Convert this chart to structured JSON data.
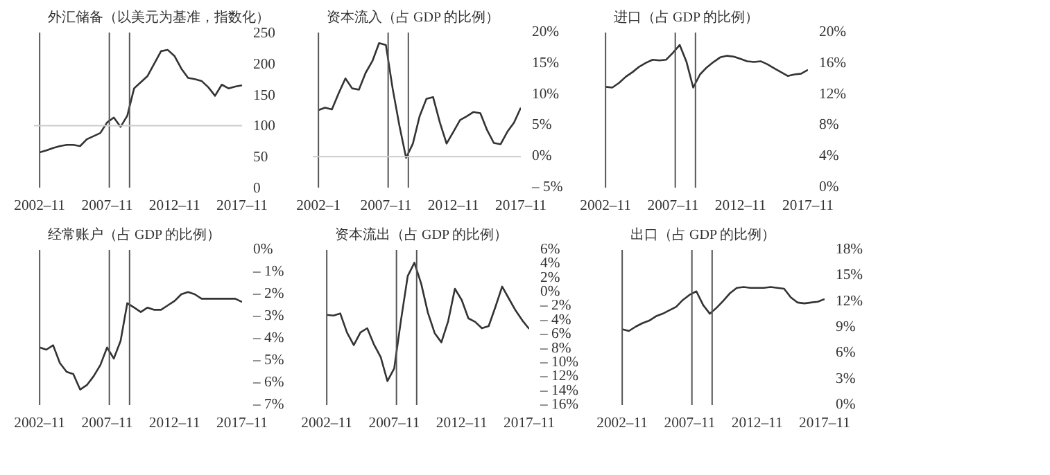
{
  "chart_data": [
    {
      "type": "line",
      "x": [
        "2002-11",
        "2003-05",
        "2003-11",
        "2004-05",
        "2004-11",
        "2005-05",
        "2005-11",
        "2006-05",
        "2006-11",
        "2007-05",
        "2007-11",
        "2008-05",
        "2008-11",
        "2009-05",
        "2009-11",
        "2010-05",
        "2010-11",
        "2011-05",
        "2011-11",
        "2012-05",
        "2012-11",
        "2013-05",
        "2013-11",
        "2014-05",
        "2014-11",
        "2015-05",
        "2015-11",
        "2016-05",
        "2016-11",
        "2017-05",
        "2017-11"
      ],
      "series": [
        {
          "name": "外汇储备（以美元为基准，指数化）",
          "color": "#333333",
          "values": [
            57,
            60,
            64,
            67,
            69,
            69,
            67,
            78,
            83,
            88,
            105,
            113,
            98,
            116,
            160,
            170,
            180,
            200,
            220,
            222,
            212,
            192,
            177,
            175,
            172,
            162,
            148,
            166,
            160,
            163,
            165
          ]
        }
      ],
      "xlim": [
        "2002-06",
        "2017-11"
      ],
      "xticks": [
        {
          "value": "2002-11",
          "label": "2002–11"
        },
        {
          "value": "2007-11",
          "label": "2007–11"
        },
        {
          "value": "2012-11",
          "label": "2012–11"
        },
        {
          "value": "2017-11",
          "label": "2017–11"
        }
      ],
      "ylim": [
        0,
        250
      ],
      "yticks": [
        0,
        50,
        100,
        150,
        200,
        250
      ],
      "ref_lines": [
        {
          "axis": "x",
          "value": "2002-11"
        },
        {
          "axis": "x",
          "value": "2008-01"
        },
        {
          "axis": "x",
          "value": "2009-07"
        },
        {
          "axis": "y",
          "value": 100,
          "color": "#cccccc"
        }
      ]
    },
    {
      "type": "line",
      "x": [
        "2002-11",
        "2003-05",
        "2003-11",
        "2004-05",
        "2004-11",
        "2005-05",
        "2005-11",
        "2006-05",
        "2006-11",
        "2007-05",
        "2007-11",
        "2008-05",
        "2008-11",
        "2009-05",
        "2009-11",
        "2010-05",
        "2010-11",
        "2011-05",
        "2011-11",
        "2012-05",
        "2012-11",
        "2013-05",
        "2013-11",
        "2014-05",
        "2014-11",
        "2015-05",
        "2015-11",
        "2016-05",
        "2016-11",
        "2017-05",
        "2017-11"
      ],
      "series": [
        {
          "name": "资本流入（占 GDP 的比例）",
          "color": "#333333",
          "values": [
            7.5,
            7.9,
            7.6,
            10.2,
            12.6,
            11,
            10.8,
            13.5,
            15.4,
            18.3,
            18,
            11,
            5.0,
            -0.2,
            2.1,
            6.5,
            9.3,
            9.6,
            5.5,
            2.1,
            4.0,
            5.9,
            6.5,
            7.2,
            7.0,
            4.3,
            2.2,
            2.0,
            4.0,
            5.5,
            7.9
          ]
        }
      ],
      "xlim": [
        "2002-06",
        "2017-11"
      ],
      "xticks": [
        {
          "value": "2002-11",
          "label": "2002–1"
        },
        {
          "value": "2007-11",
          "label": "2007–11"
        },
        {
          "value": "2012-11",
          "label": "2012–11"
        },
        {
          "value": "2017-11",
          "label": "2017–11"
        }
      ],
      "ylim": [
        -5,
        20
      ],
      "yticks": [
        {
          "value": -5,
          "label": "– 5%"
        },
        {
          "value": 0,
          "label": "0%"
        },
        {
          "value": 5,
          "label": "5%"
        },
        {
          "value": 10,
          "label": "10%"
        },
        {
          "value": 15,
          "label": "15%"
        },
        {
          "value": 20,
          "label": "20%"
        }
      ],
      "ref_lines": [
        {
          "axis": "x",
          "value": "2002-11"
        },
        {
          "axis": "x",
          "value": "2008-01"
        },
        {
          "axis": "x",
          "value": "2009-07"
        },
        {
          "axis": "y",
          "value": 0,
          "color": "#cccccc"
        }
      ]
    },
    {
      "type": "line",
      "x": [
        "2002-11",
        "2003-05",
        "2003-11",
        "2004-05",
        "2004-11",
        "2005-05",
        "2005-11",
        "2006-05",
        "2006-11",
        "2007-05",
        "2007-11",
        "2008-05",
        "2008-11",
        "2009-05",
        "2009-11",
        "2010-05",
        "2010-11",
        "2011-05",
        "2011-11",
        "2012-05",
        "2012-11",
        "2013-05",
        "2013-11",
        "2014-05",
        "2014-11",
        "2015-05",
        "2015-11",
        "2016-05",
        "2016-11",
        "2017-05",
        "2017-11"
      ],
      "series": [
        {
          "name": "进口（占 GDP 的比例）",
          "color": "#333333",
          "values": [
            13,
            12.9,
            13.5,
            14.3,
            14.9,
            15.6,
            16.1,
            16.5,
            16.4,
            16.5,
            17.4,
            18.4,
            16.2,
            12.9,
            14.6,
            15.5,
            16.2,
            16.8,
            17.0,
            16.9,
            16.6,
            16.3,
            16.2,
            16.3,
            15.9,
            15.4,
            14.9,
            14.4,
            14.6,
            14.7,
            15.2
          ]
        }
      ],
      "xlim": [
        "2002-06",
        "2017-11"
      ],
      "xticks": [
        {
          "value": "2002-11",
          "label": "2002–11"
        },
        {
          "value": "2007-11",
          "label": "2007–11"
        },
        {
          "value": "2012-11",
          "label": "2012–11"
        },
        {
          "value": "2017-11",
          "label": "2017–11"
        }
      ],
      "ylim": [
        0,
        20
      ],
      "yticks": [
        {
          "value": 0,
          "label": "0%"
        },
        {
          "value": 4,
          "label": "4%"
        },
        {
          "value": 8,
          "label": "8%"
        },
        {
          "value": 12,
          "label": "12%"
        },
        {
          "value": 16,
          "label": "16%"
        },
        {
          "value": 20,
          "label": "20%"
        }
      ],
      "ref_lines": [
        {
          "axis": "x",
          "value": "2002-11"
        },
        {
          "axis": "x",
          "value": "2008-01"
        },
        {
          "axis": "x",
          "value": "2009-07"
        }
      ]
    },
    {
      "type": "line",
      "x": [
        "2002-11",
        "2003-05",
        "2003-11",
        "2004-05",
        "2004-11",
        "2005-05",
        "2005-11",
        "2006-05",
        "2006-11",
        "2007-05",
        "2007-11",
        "2008-05",
        "2008-11",
        "2009-05",
        "2009-11",
        "2010-05",
        "2010-11",
        "2011-05",
        "2011-11",
        "2012-05",
        "2012-11",
        "2013-05",
        "2013-11",
        "2014-05",
        "2014-11",
        "2015-05",
        "2015-11",
        "2016-05",
        "2016-11",
        "2017-05",
        "2017-11"
      ],
      "series": [
        {
          "name": "经常账户（占 GDP 的比例）",
          "color": "#333333",
          "values": [
            -4.4,
            -4.5,
            -4.3,
            -5.1,
            -5.5,
            -5.6,
            -6.3,
            -6.1,
            -5.7,
            -5.2,
            -4.4,
            -4.9,
            -4.1,
            -2.4,
            -2.6,
            -2.8,
            -2.6,
            -2.7,
            -2.7,
            -2.5,
            -2.3,
            -2.0,
            -1.9,
            -2.0,
            -2.2,
            -2.2,
            -2.2,
            -2.2,
            -2.2,
            -2.2,
            -2.35
          ]
        }
      ],
      "xlim": [
        "2002-06",
        "2017-11"
      ],
      "xticks": [
        {
          "value": "2002-11",
          "label": "2002–11"
        },
        {
          "value": "2007-11",
          "label": "2007–11"
        },
        {
          "value": "2012-11",
          "label": "2012–11"
        },
        {
          "value": "2017-11",
          "label": "2017–11"
        }
      ],
      "ylim": [
        -7,
        0
      ],
      "yticks": [
        {
          "value": -7,
          "label": "– 7%"
        },
        {
          "value": -6,
          "label": "– 6%"
        },
        {
          "value": -5,
          "label": "– 5%"
        },
        {
          "value": -4,
          "label": "– 4%"
        },
        {
          "value": -3,
          "label": "– 3%"
        },
        {
          "value": -2,
          "label": "– 2%"
        },
        {
          "value": -1,
          "label": "– 1%"
        },
        {
          "value": 0,
          "label": "0%"
        }
      ],
      "ref_lines": [
        {
          "axis": "x",
          "value": "2002-11"
        },
        {
          "axis": "x",
          "value": "2008-01"
        },
        {
          "axis": "x",
          "value": "2009-07"
        }
      ]
    },
    {
      "type": "line",
      "x": [
        "2002-11",
        "2003-05",
        "2003-11",
        "2004-05",
        "2004-11",
        "2005-05",
        "2005-11",
        "2006-05",
        "2006-11",
        "2007-05",
        "2007-11",
        "2008-05",
        "2008-11",
        "2009-05",
        "2009-11",
        "2010-05",
        "2010-11",
        "2011-05",
        "2011-11",
        "2012-05",
        "2012-11",
        "2013-05",
        "2013-11",
        "2014-05",
        "2014-11",
        "2015-05",
        "2015-11",
        "2016-05",
        "2016-11",
        "2017-05",
        "2017-11"
      ],
      "series": [
        {
          "name": "资本流出（占 GDP 的比例）",
          "color": "#333333",
          "values": [
            -3.2,
            -3.3,
            -3.0,
            -5.7,
            -7.5,
            -5.7,
            -5.1,
            -7.4,
            -9.2,
            -12.6,
            -10.8,
            -4.0,
            2.3,
            4.2,
            1.2,
            -2.9,
            -5.8,
            -7.1,
            -4.1,
            0.5,
            -1.1,
            -3.7,
            -4.2,
            -5.1,
            -4.8,
            -2.1,
            0.8,
            -0.9,
            -2.6,
            -4.0,
            -5.2
          ]
        }
      ],
      "xlim": [
        "2002-06",
        "2017-11"
      ],
      "xticks": [
        {
          "value": "2002-11",
          "label": "2002–11"
        },
        {
          "value": "2007-11",
          "label": "2007–11"
        },
        {
          "value": "2012-11",
          "label": "2012–11"
        },
        {
          "value": "2017-11",
          "label": "2017–11"
        }
      ],
      "ylim": [
        -16,
        6
      ],
      "yticks": [
        {
          "value": -16,
          "label": "– 16%"
        },
        {
          "value": -14,
          "label": "– 14%"
        },
        {
          "value": -12,
          "label": "– 12%"
        },
        {
          "value": -10,
          "label": "– 10%"
        },
        {
          "value": -8,
          "label": "– 8%"
        },
        {
          "value": -6,
          "label": "– 6%"
        },
        {
          "value": -4,
          "label": "– 4%"
        },
        {
          "value": -2,
          "label": "– 2%"
        },
        {
          "value": 0,
          "label": "0%"
        },
        {
          "value": 2,
          "label": "2%"
        },
        {
          "value": 4,
          "label": "4%"
        },
        {
          "value": 6,
          "label": "6%"
        }
      ],
      "ref_lines": [
        {
          "axis": "x",
          "value": "2002-11"
        },
        {
          "axis": "x",
          "value": "2008-01"
        },
        {
          "axis": "x",
          "value": "2009-07"
        }
      ]
    },
    {
      "type": "line",
      "x": [
        "2002-11",
        "2003-05",
        "2003-11",
        "2004-05",
        "2004-11",
        "2005-05",
        "2005-11",
        "2006-05",
        "2006-11",
        "2007-05",
        "2007-11",
        "2008-05",
        "2008-11",
        "2009-05",
        "2009-11",
        "2010-05",
        "2010-11",
        "2011-05",
        "2011-11",
        "2012-05",
        "2012-11",
        "2013-05",
        "2013-11",
        "2014-05",
        "2014-11",
        "2015-05",
        "2015-11",
        "2016-05",
        "2016-11",
        "2017-05",
        "2017-11"
      ],
      "series": [
        {
          "name": "出口（占 GDP 的比例）",
          "color": "#333333",
          "values": [
            8.8,
            8.6,
            9.1,
            9.5,
            9.8,
            10.3,
            10.6,
            11.0,
            11.4,
            12.2,
            12.8,
            13.2,
            11.6,
            10.6,
            11.3,
            12.1,
            13.0,
            13.6,
            13.7,
            13.6,
            13.6,
            13.6,
            13.7,
            13.6,
            13.5,
            12.5,
            11.9,
            11.8,
            11.9,
            12.0,
            12.3
          ]
        }
      ],
      "xlim": [
        "2002-06",
        "2017-11"
      ],
      "xticks": [
        {
          "value": "2002-11",
          "label": "2002–11"
        },
        {
          "value": "2007-11",
          "label": "2007–11"
        },
        {
          "value": "2012-11",
          "label": "2012–11"
        },
        {
          "value": "2017-11",
          "label": "2017–11"
        }
      ],
      "ylim": [
        0,
        18
      ],
      "yticks": [
        {
          "value": 0,
          "label": "0%"
        },
        {
          "value": 3,
          "label": "3%"
        },
        {
          "value": 6,
          "label": "6%"
        },
        {
          "value": 9,
          "label": "9%"
        },
        {
          "value": 12,
          "label": "12%"
        },
        {
          "value": 15,
          "label": "15%"
        },
        {
          "value": 18,
          "label": "18%"
        }
      ],
      "ref_lines": [
        {
          "axis": "x",
          "value": "2002-11"
        },
        {
          "axis": "x",
          "value": "2008-01"
        },
        {
          "axis": "x",
          "value": "2009-07"
        }
      ]
    }
  ]
}
